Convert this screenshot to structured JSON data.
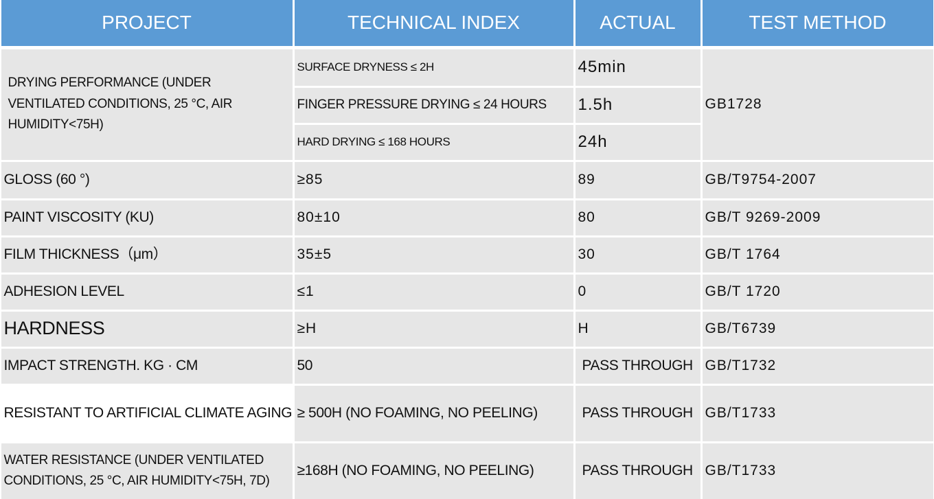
{
  "table": {
    "headers": [
      "PROJECT",
      "TECHNICAL INDEX",
      "ACTUAL",
      "TEST METHOD"
    ],
    "drying": {
      "project": "DRYING PERFORMANCE (UNDER VENTILATED CONDITIONS, 25 °C, AIR HUMIDITY<75H)",
      "items": [
        [
          "SURFACE DRYNESS ≤ 2H",
          "45min"
        ],
        [
          "FINGER PRESSURE DRYING ≤ 24 HOURS",
          "1.5h"
        ],
        [
          "HARD DRYING ≤ 168 HOURS",
          "24h"
        ]
      ],
      "method": "GB1728"
    },
    "rows": [
      [
        "GLOSS (60 °)",
        "≥85",
        "89",
        "GB/T9754-2007"
      ],
      [
        "PAINT VISCOSITY (KU)",
        "80±10",
        "80",
        "GB/T 9269-2009"
      ],
      [
        "FILM THICKNESS（μm）",
        "35±5",
        "30",
        "GB/T 1764"
      ],
      [
        "ADHESION LEVEL",
        "≤1",
        "0",
        "GB/T 1720"
      ],
      [
        "HARDNESS",
        "≥H",
        "H",
        "GB/T6739"
      ],
      [
        "IMPACT STRENGTH. KG · CM",
        "50",
        "PASS THROUGH",
        "GB/T1732"
      ],
      [
        "RESISTANT TO ARTIFICIAL CLIMATE AGING",
        "≥ 500H (NO FOAMING, NO PEELING)",
        "PASS THROUGH",
        "GB/T1733"
      ],
      [
        "WATER RESISTANCE (UNDER VENTILATED CONDITIONS, 25 °C, AIR HUMIDITY<75H, 7D)",
        "≥168H (NO FOAMING, NO PEELING)",
        "PASS THROUGH",
        "GB/T1733"
      ]
    ]
  }
}
